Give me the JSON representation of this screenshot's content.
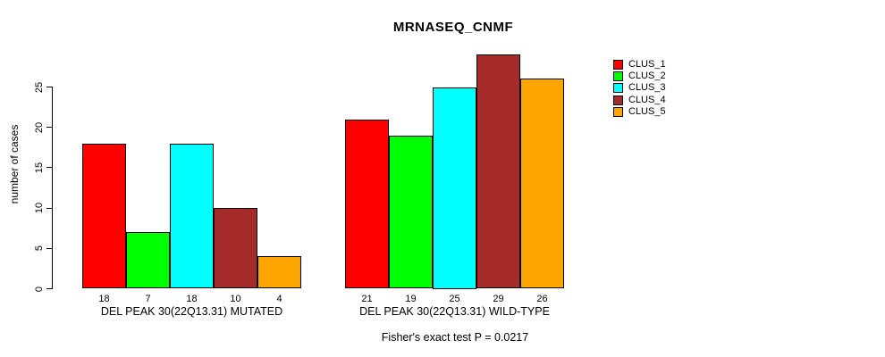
{
  "title": "MRNASEQ_CNMF",
  "annotation": "Fisher's exact test P = 0.0217",
  "chart_data": {
    "type": "bar",
    "title": "MRNASEQ_CNMF",
    "ylabel": "number of cases",
    "xlabel": "",
    "yticks": [
      0,
      5,
      10,
      15,
      20,
      25
    ],
    "ylim": [
      0,
      29
    ],
    "grid": false,
    "legend_position": "right-outside",
    "series": [
      "CLUS_1",
      "CLUS_2",
      "CLUS_3",
      "CLUS_4",
      "CLUS_5"
    ],
    "colors": [
      "#FF0000",
      "#00FF00",
      "#00FFFF",
      "#A52A2A",
      "#FFA500"
    ],
    "groups": [
      {
        "label": "DEL PEAK 30(22Q13.31) MUTATED",
        "values": [
          18,
          7,
          18,
          10,
          4
        ]
      },
      {
        "label": "DEL PEAK 30(22Q13.31) WILD-TYPE",
        "values": [
          21,
          19,
          25,
          29,
          26
        ]
      }
    ],
    "value_labels_shown": true,
    "annotation": "Fisher's exact test P = 0.0217"
  }
}
